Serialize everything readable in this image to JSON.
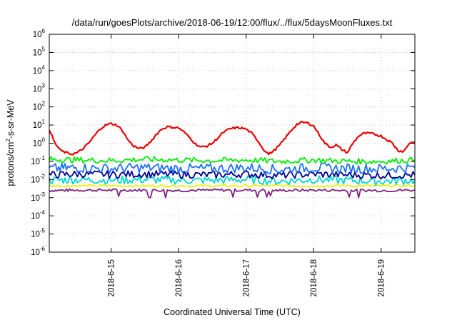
{
  "chart_data": {
    "type": "line",
    "title": "/data/run/goesPlots/archive/2018-06-19/12:00/flux/../flux/5daysMoonFluxes.txt",
    "xlabel": "Coordinated Universal Time (UTC)",
    "ylabel": "protons/cm2-s-sr-MeV",
    "ylabel_parts": {
      "base": "protons/cm",
      "sup": "2",
      "rest": "-s-sr-MeV"
    },
    "yscale": "log",
    "ylim": [
      1e-06,
      1000000.0
    ],
    "xlim": [
      "2018-06-14T02:00",
      "2018-06-19T12:00"
    ],
    "grid": true,
    "x_ticks": [
      {
        "date": "2018-06-15T00:00",
        "label": "2018-6-15"
      },
      {
        "date": "2018-06-16T00:00",
        "label": "2018-6-16"
      },
      {
        "date": "2018-06-17T00:00",
        "label": "2018-6-17"
      },
      {
        "date": "2018-06-18T00:00",
        "label": "2018-6-18"
      },
      {
        "date": "2018-06-19T00:00",
        "label": "2018-6-19"
      }
    ],
    "y_ticks": [
      {
        "base": "10",
        "exp": "6"
      },
      {
        "base": "10",
        "exp": "5"
      },
      {
        "base": "10",
        "exp": "4"
      },
      {
        "base": "10",
        "exp": "3"
      },
      {
        "base": "10",
        "exp": "2"
      },
      {
        "base": "10",
        "exp": "1"
      },
      {
        "base": "10",
        "exp": "0"
      },
      {
        "base": "10",
        "exp": "-1"
      },
      {
        "base": "10",
        "exp": "-2"
      },
      {
        "base": "10",
        "exp": "-3"
      },
      {
        "base": "10",
        "exp": "-4"
      },
      {
        "base": "10",
        "exp": "-5"
      },
      {
        "base": "10",
        "exp": "-6"
      }
    ],
    "series": [
      {
        "color": "#ee0000",
        "x": [
          "2018-06-14T02:00",
          "2018-06-14T04:00",
          "2018-06-14T06:00",
          "2018-06-14T08:00",
          "2018-06-14T10:00",
          "2018-06-14T12:00",
          "2018-06-14T14:00",
          "2018-06-14T16:00",
          "2018-06-14T18:00",
          "2018-06-14T20:00",
          "2018-06-14T22:00",
          "2018-06-15T00:00",
          "2018-06-15T02:00",
          "2018-06-15T04:00",
          "2018-06-15T06:00",
          "2018-06-15T08:00",
          "2018-06-15T10:00",
          "2018-06-15T12:00",
          "2018-06-15T14:00",
          "2018-06-15T16:00",
          "2018-06-15T18:00",
          "2018-06-15T20:00",
          "2018-06-15T22:00",
          "2018-06-16T00:00",
          "2018-06-16T02:00",
          "2018-06-16T04:00",
          "2018-06-16T06:00",
          "2018-06-16T08:00",
          "2018-06-16T10:00",
          "2018-06-16T12:00",
          "2018-06-16T14:00",
          "2018-06-16T16:00",
          "2018-06-16T18:00",
          "2018-06-16T20:00",
          "2018-06-16T22:00",
          "2018-06-17T00:00",
          "2018-06-17T02:00",
          "2018-06-17T04:00",
          "2018-06-17T06:00",
          "2018-06-17T08:00",
          "2018-06-17T10:00",
          "2018-06-17T12:00",
          "2018-06-17T14:00",
          "2018-06-17T16:00",
          "2018-06-17T18:00",
          "2018-06-17T20:00",
          "2018-06-17T22:00",
          "2018-06-18T00:00",
          "2018-06-18T02:00",
          "2018-06-18T04:00",
          "2018-06-18T06:00",
          "2018-06-18T08:00",
          "2018-06-18T10:00",
          "2018-06-18T12:00",
          "2018-06-18T14:00",
          "2018-06-18T16:00",
          "2018-06-18T18:00",
          "2018-06-18T20:00",
          "2018-06-18T22:00",
          "2018-06-19T00:00",
          "2018-06-19T02:00",
          "2018-06-19T04:00",
          "2018-06-19T06:00",
          "2018-06-19T08:00",
          "2018-06-19T10:00",
          "2018-06-19T12:00"
        ],
        "y": [
          6.0,
          1.0,
          0.4,
          0.3,
          0.25,
          0.3,
          0.5,
          1.0,
          2.5,
          6.0,
          10.0,
          12.0,
          10.0,
          5.0,
          1.5,
          0.7,
          0.5,
          0.6,
          1.2,
          3.0,
          6.0,
          8.0,
          7.5,
          7.0,
          4.0,
          2.0,
          0.9,
          0.6,
          0.7,
          1.0,
          2.0,
          4.0,
          6.0,
          7.0,
          7.0,
          6.0,
          3.5,
          1.5,
          0.5,
          0.25,
          0.4,
          0.8,
          2.0,
          5.0,
          11.0,
          14.0,
          13.0,
          9.0,
          3.0,
          1.0,
          0.6,
          0.8,
          0.45,
          0.3,
          1.0,
          2.5,
          3.5,
          3.5,
          3.0,
          2.5,
          1.6,
          1.0,
          0.4,
          0.35,
          1.0,
          1.2
        ]
      },
      {
        "color": "#00ee00",
        "x": [
          "2018-06-14T02:00",
          "2018-06-14T12:00",
          "2018-06-15T00:00",
          "2018-06-15T12:00",
          "2018-06-16T00:00",
          "2018-06-16T12:00",
          "2018-06-17T00:00",
          "2018-06-17T12:00",
          "2018-06-18T00:00",
          "2018-06-18T12:00",
          "2018-06-19T00:00",
          "2018-06-19T12:00"
        ],
        "y": [
          0.13,
          0.12,
          0.11,
          0.13,
          0.12,
          0.11,
          0.12,
          0.1,
          0.12,
          0.1,
          0.1,
          0.12
        ]
      },
      {
        "color": "#1f6fff",
        "x": [
          "2018-06-14T02:00",
          "2018-06-14T12:00",
          "2018-06-15T00:00",
          "2018-06-15T12:00",
          "2018-06-16T00:00",
          "2018-06-16T12:00",
          "2018-06-17T00:00",
          "2018-06-17T12:00",
          "2018-06-18T00:00",
          "2018-06-18T12:00",
          "2018-06-19T00:00",
          "2018-06-19T12:00"
        ],
        "y": [
          0.04,
          0.045,
          0.04,
          0.045,
          0.04,
          0.04,
          0.045,
          0.035,
          0.045,
          0.04,
          0.04,
          0.045
        ]
      },
      {
        "color": "#00008f",
        "x": [
          "2018-06-14T02:00",
          "2018-06-14T12:00",
          "2018-06-15T00:00",
          "2018-06-15T12:00",
          "2018-06-16T00:00",
          "2018-06-16T12:00",
          "2018-06-17T00:00",
          "2018-06-17T12:00",
          "2018-06-18T00:00",
          "2018-06-18T12:00",
          "2018-06-19T00:00",
          "2018-06-19T12:00"
        ],
        "y": [
          0.018,
          0.02,
          0.019,
          0.02,
          0.019,
          0.018,
          0.02,
          0.017,
          0.02,
          0.018,
          0.017,
          0.018
        ]
      },
      {
        "color": "#00d5d5",
        "x": [
          "2018-06-14T02:00",
          "2018-06-14T12:00",
          "2018-06-15T00:00",
          "2018-06-15T12:00",
          "2018-06-16T00:00",
          "2018-06-16T12:00",
          "2018-06-17T00:00",
          "2018-06-17T12:00",
          "2018-06-18T00:00",
          "2018-06-18T12:00",
          "2018-06-19T00:00",
          "2018-06-19T12:00"
        ],
        "y": [
          0.009,
          0.01,
          0.009,
          0.01,
          0.009,
          0.009,
          0.01,
          0.008,
          0.01,
          0.009,
          0.008,
          0.009
        ]
      },
      {
        "color": "#f0f000",
        "x": [
          "2018-06-14T02:00",
          "2018-06-14T12:00",
          "2018-06-15T00:00",
          "2018-06-15T12:00",
          "2018-06-16T00:00",
          "2018-06-16T12:00",
          "2018-06-17T00:00",
          "2018-06-17T12:00",
          "2018-06-18T00:00",
          "2018-06-18T12:00",
          "2018-06-19T00:00",
          "2018-06-19T12:00"
        ],
        "y": [
          0.0045,
          0.0045,
          0.0045,
          0.0045,
          0.0045,
          0.0045,
          0.0045,
          0.0045,
          0.0045,
          0.0045,
          0.0045,
          0.0045
        ]
      },
      {
        "color": "#7f2080",
        "x": [
          "2018-06-14T02:00",
          "2018-06-14T12:00",
          "2018-06-15T00:00",
          "2018-06-15T12:00",
          "2018-06-16T00:00",
          "2018-06-16T12:00",
          "2018-06-17T00:00",
          "2018-06-17T12:00",
          "2018-06-18T00:00",
          "2018-06-18T12:00",
          "2018-06-19T00:00",
          "2018-06-19T12:00"
        ],
        "y": [
          0.0025,
          0.0026,
          0.0026,
          0.0026,
          0.0025,
          0.0026,
          0.0026,
          0.0025,
          0.0026,
          0.0025,
          0.0025,
          0.0026
        ]
      }
    ]
  }
}
